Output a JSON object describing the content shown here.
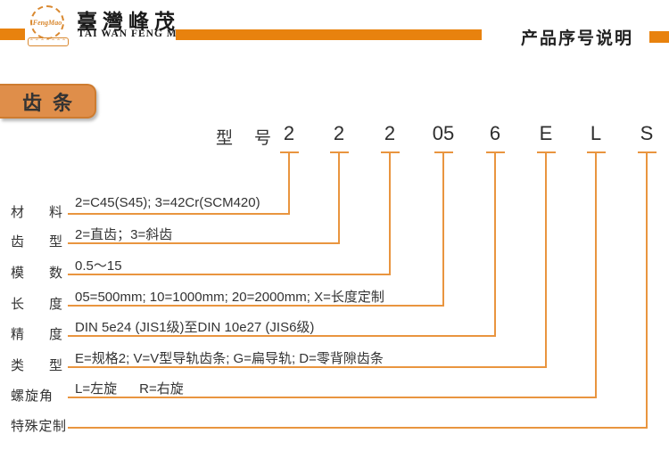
{
  "header": {
    "logo_text": "FengMao",
    "company_name_cn": "臺灣峰茂",
    "company_name_en": "TAI WAN FENG MAO",
    "page_title": "产品序号说明"
  },
  "section_label": "齿条",
  "model": {
    "label": "型号",
    "codes": [
      "2",
      "2",
      "2",
      "05",
      "6",
      "E",
      "L",
      "S"
    ]
  },
  "rows": [
    {
      "label": "材料",
      "desc": "2=C45(S45); 3=42Cr(SCM420)"
    },
    {
      "label": "齿型",
      "desc": "2=直齿；3=斜齿"
    },
    {
      "label": "模数",
      "desc": "0.5～15"
    },
    {
      "label": "长度",
      "desc": "05=500mm; 10=1000mm; 20=2000mm; X=长度定制"
    },
    {
      "label": "精度",
      "desc": "DIN 5e24 (JIS1级)至DIN 10e27 (JIS6级)"
    },
    {
      "label": "类型",
      "desc": "E=规格2; V=V型导轨齿条; G=扁导轨; D=零背隙齿条"
    },
    {
      "label": "螺旋角",
      "desc": "L=左旋      R=右旋"
    },
    {
      "label": "特殊定制",
      "desc": ""
    }
  ],
  "colors": {
    "accent": "#E8820E",
    "connector": "#E9953F",
    "box_fill": "#DF8E4A",
    "box_border": "#CE7C30",
    "text_dark": "#333333"
  }
}
